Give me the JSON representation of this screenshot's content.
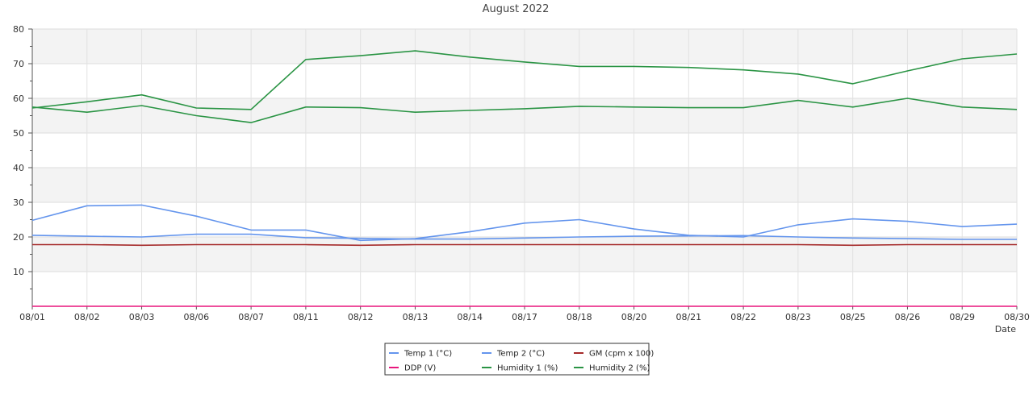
{
  "chart_data": {
    "type": "line",
    "title": "August 2022",
    "xlabel": "Date",
    "ylabel": "",
    "ylim": [
      0,
      80
    ],
    "yticks": [
      10,
      20,
      30,
      40,
      50,
      60,
      70,
      80
    ],
    "grid": true,
    "legend_position": "bottom-center",
    "categories": [
      "08/01",
      "08/02",
      "08/03",
      "08/06",
      "08/07",
      "08/11",
      "08/12",
      "08/13",
      "08/14",
      "08/17",
      "08/18",
      "08/20",
      "08/21",
      "08/22",
      "08/23",
      "08/25",
      "08/26",
      "08/29",
      "08/30"
    ],
    "series": [
      {
        "name": "Temp 1 (°C)",
        "color": "#6495ed",
        "values": [
          24.8,
          29.0,
          29.2,
          26.0,
          22.0,
          22.0,
          19.0,
          19.5,
          21.5,
          24.0,
          25.0,
          22.3,
          20.5,
          20.0,
          23.5,
          25.2,
          24.5,
          23.0,
          23.7
        ]
      },
      {
        "name": "Temp 2 (°C)",
        "color": "#6495ed",
        "values": [
          20.5,
          20.2,
          20.0,
          20.8,
          20.8,
          19.8,
          19.6,
          19.4,
          19.4,
          19.7,
          20.0,
          20.2,
          20.3,
          20.4,
          20.0,
          19.7,
          19.5,
          19.3,
          19.3
        ]
      },
      {
        "name": "GM (cpm x 100)",
        "color": "#a52a2a",
        "values": [
          17.8,
          17.8,
          17.6,
          17.8,
          17.8,
          17.8,
          17.6,
          17.8,
          17.8,
          17.8,
          17.8,
          17.8,
          17.8,
          17.8,
          17.8,
          17.6,
          17.8,
          17.8,
          17.8
        ]
      },
      {
        "name": "DDP (V)",
        "color": "#e8177d",
        "values": [
          0,
          0,
          0,
          0,
          0,
          0,
          0,
          0,
          0,
          0,
          0,
          0,
          0,
          0,
          0,
          0,
          0,
          0,
          0
        ]
      },
      {
        "name": "Humidity 1 (%)",
        "color": "#2a9444",
        "values": [
          57.2,
          59.0,
          61.0,
          57.2,
          56.8,
          71.2,
          72.3,
          73.7,
          71.9,
          70.5,
          69.2,
          69.2,
          68.9,
          68.2,
          67.0,
          64.2,
          67.9,
          71.4,
          72.8
        ]
      },
      {
        "name": "Humidity 2 (%)",
        "color": "#2a9444",
        "values": [
          57.5,
          56.0,
          57.9,
          55.0,
          53.0,
          57.5,
          57.3,
          56.0,
          56.5,
          57.0,
          57.7,
          57.5,
          57.3,
          57.3,
          59.4,
          57.5,
          60.0,
          57.5,
          56.8
        ]
      }
    ]
  }
}
